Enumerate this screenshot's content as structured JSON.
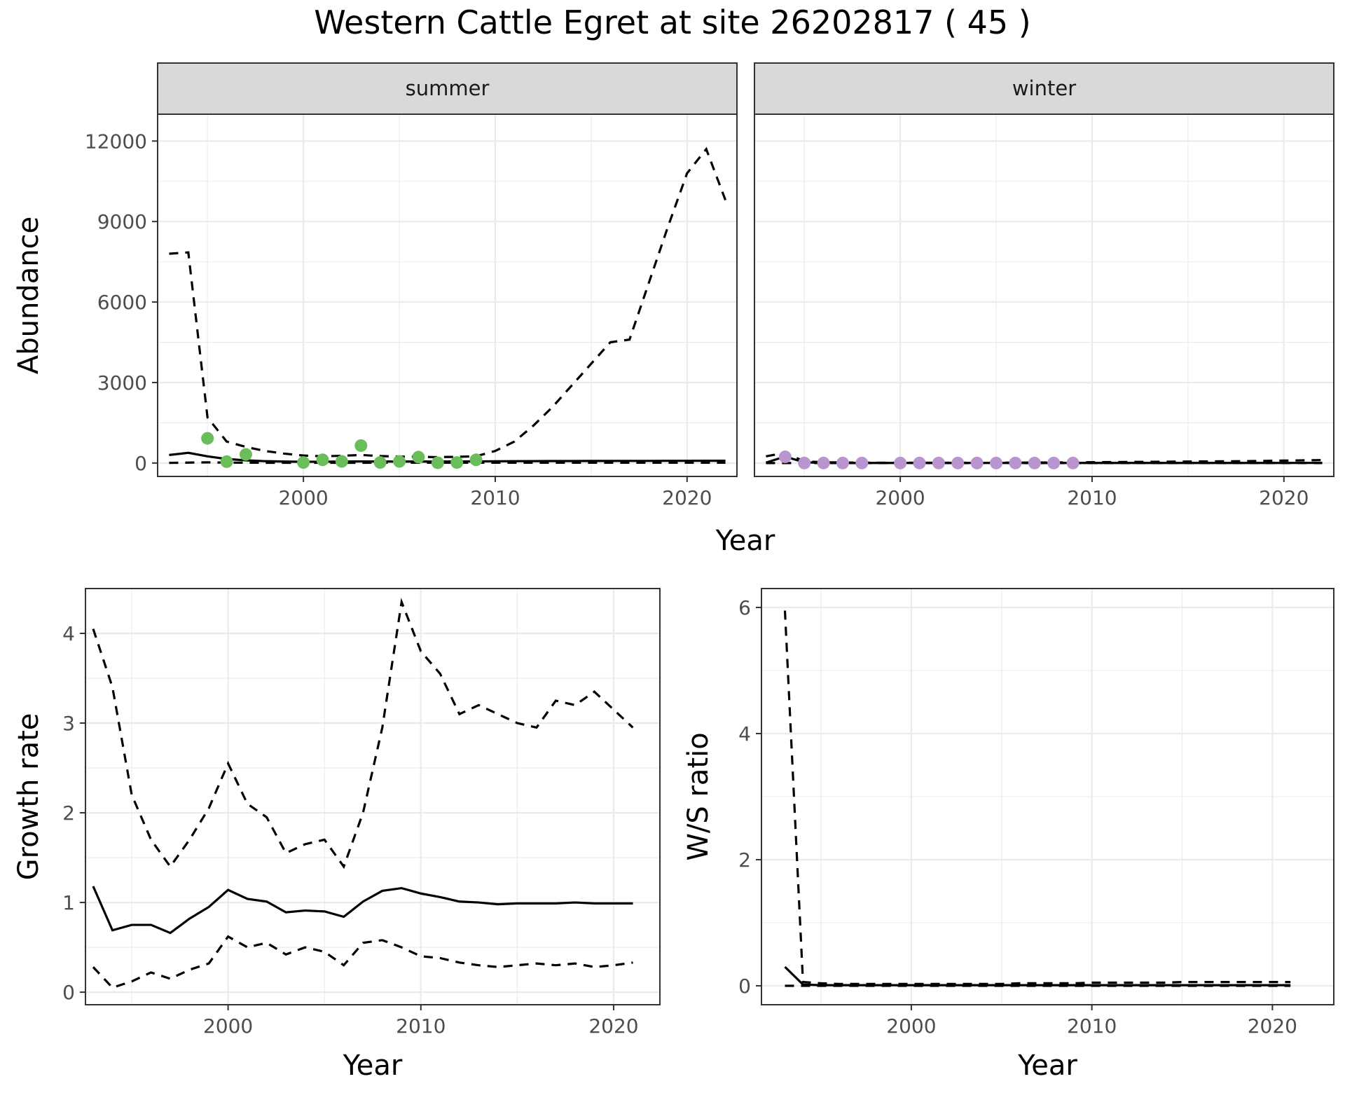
{
  "title": "Western Cattle Egret at site 26202817 ( 45 )",
  "colors": {
    "summer_points": "#6abd5a",
    "winter_points": "#b895cf",
    "line": "#000000"
  },
  "chart_data": [
    {
      "id": "abundance",
      "type": "line",
      "ylabel": "Abundance",
      "xlabel": "Year",
      "xlim": [
        1992.4,
        2022.6
      ],
      "ylim": [
        -500,
        13000
      ],
      "xticks": [
        2000,
        2010,
        2020
      ],
      "yticks": [
        0,
        3000,
        6000,
        9000,
        12000
      ],
      "grid": true,
      "facets": [
        {
          "strip": "summer",
          "point_color": "#6abd5a",
          "x": [
            1993,
            1994,
            1995,
            1996,
            1997,
            1998,
            1999,
            2000,
            2001,
            2002,
            2003,
            2004,
            2005,
            2006,
            2007,
            2008,
            2009,
            2010,
            2011,
            2012,
            2013,
            2014,
            2015,
            2016,
            2017,
            2018,
            2019,
            2020,
            2021,
            2022
          ],
          "series": [
            {
              "style": "dashed",
              "values": [
                7800,
                7850,
                1700,
                800,
                600,
                450,
                350,
                280,
                250,
                270,
                300,
                260,
                240,
                230,
                220,
                230,
                250,
                450,
                800,
                1400,
                2100,
                2900,
                3700,
                4500,
                4600,
                6700,
                8800,
                10800,
                11700,
                9800
              ]
            },
            {
              "style": "solid",
              "values": [
                300,
                380,
                250,
                150,
                100,
                70,
                55,
                45,
                50,
                55,
                60,
                55,
                55,
                55,
                55,
                58,
                60,
                65,
                70,
                72,
                75,
                75,
                78,
                78,
                80,
                80,
                82,
                82,
                85,
                85
              ]
            },
            {
              "style": "dashed",
              "values": [
                5,
                15,
                25,
                15,
                12,
                10,
                10,
                10,
                10,
                10,
                10,
                12,
                12,
                12,
                12,
                12,
                12,
                12,
                12,
                12,
                12,
                12,
                12,
                12,
                12,
                12,
                12,
                12,
                12,
                12
              ]
            }
          ],
          "points": {
            "x": [
              1995,
              1996,
              1997,
              2000,
              2001,
              2002,
              2003,
              2004,
              2005,
              2006,
              2007,
              2008,
              2009
            ],
            "y": [
              920,
              50,
              320,
              20,
              120,
              60,
              650,
              20,
              60,
              220,
              10,
              20,
              120
            ]
          }
        },
        {
          "strip": "winter",
          "point_color": "#b895cf",
          "x": [
            1993,
            1994,
            1995,
            1996,
            1997,
            1998,
            1999,
            2000,
            2001,
            2002,
            2003,
            2004,
            2005,
            2006,
            2007,
            2008,
            2009,
            2010,
            2011,
            2012,
            2013,
            2014,
            2015,
            2016,
            2017,
            2018,
            2019,
            2020,
            2021,
            2022
          ],
          "series": [
            {
              "style": "dashed",
              "values": [
                250,
                380,
                60,
                30,
                20,
                15,
                10,
                10,
                10,
                10,
                10,
                10,
                12,
                15,
                18,
                20,
                25,
                30,
                35,
                40,
                45,
                50,
                55,
                60,
                65,
                70,
                80,
                90,
                100,
                110
              ]
            },
            {
              "style": "solid",
              "values": [
                15,
                240,
                25,
                5,
                3,
                2,
                2,
                2,
                2,
                2,
                2,
                2,
                2,
                2,
                2,
                2,
                2,
                3,
                3,
                3,
                3,
                3,
                3,
                3,
                3,
                3,
                3,
                3,
                4,
                4
              ]
            },
            {
              "style": "dashed",
              "values": [
                0,
                0,
                0,
                0,
                0,
                0,
                0,
                0,
                0,
                0,
                0,
                0,
                0,
                0,
                0,
                0,
                0,
                0,
                0,
                0,
                0,
                0,
                0,
                0,
                0,
                0,
                0,
                0,
                0,
                0
              ]
            }
          ],
          "points": {
            "x": [
              1994,
              1995,
              1996,
              1997,
              1998,
              2000,
              2001,
              2002,
              2003,
              2004,
              2005,
              2006,
              2007,
              2008,
              2009
            ],
            "y": [
              230,
              0,
              0,
              0,
              0,
              0,
              0,
              0,
              0,
              0,
              0,
              0,
              0,
              0,
              0
            ]
          }
        }
      ]
    },
    {
      "id": "growth",
      "type": "line",
      "ylabel": "Growth rate",
      "xlabel": "Year",
      "xlim": [
        1992.6,
        2022.4
      ],
      "ylim": [
        -0.14,
        4.5
      ],
      "xticks": [
        2000,
        2010,
        2020
      ],
      "yticks": [
        0,
        1,
        2,
        3,
        4
      ],
      "grid": true,
      "x": [
        1993,
        1994,
        1995,
        1996,
        1997,
        1998,
        1999,
        2000,
        2001,
        2002,
        2003,
        2004,
        2005,
        2006,
        2007,
        2008,
        2009,
        2010,
        2011,
        2012,
        2013,
        2014,
        2015,
        2016,
        2017,
        2018,
        2019,
        2020,
        2021
      ],
      "series": [
        {
          "style": "dashed",
          "values": [
            4.05,
            3.4,
            2.2,
            1.7,
            1.4,
            1.7,
            2.05,
            2.55,
            2.1,
            1.95,
            1.55,
            1.65,
            1.7,
            1.4,
            2.0,
            2.95,
            4.35,
            3.8,
            3.55,
            3.1,
            3.2,
            3.1,
            3.0,
            2.95,
            3.25,
            3.2,
            3.35,
            3.15,
            2.95
          ]
        },
        {
          "style": "solid",
          "values": [
            1.18,
            0.69,
            0.75,
            0.75,
            0.66,
            0.82,
            0.95,
            1.14,
            1.04,
            1.01,
            0.89,
            0.91,
            0.9,
            0.84,
            1.01,
            1.13,
            1.16,
            1.1,
            1.06,
            1.01,
            1.0,
            0.98,
            0.99,
            0.99,
            0.99,
            1.0,
            0.99,
            0.99,
            0.99
          ]
        },
        {
          "style": "dashed",
          "values": [
            0.28,
            0.05,
            0.12,
            0.22,
            0.15,
            0.25,
            0.32,
            0.62,
            0.5,
            0.55,
            0.42,
            0.5,
            0.45,
            0.3,
            0.55,
            0.58,
            0.5,
            0.4,
            0.38,
            0.33,
            0.3,
            0.28,
            0.3,
            0.32,
            0.3,
            0.32,
            0.28,
            0.3,
            0.33
          ]
        }
      ]
    },
    {
      "id": "ratio",
      "type": "line",
      "ylabel": "W/S ratio",
      "xlabel": "Year",
      "xlim": [
        1991.7,
        2023.4
      ],
      "ylim": [
        -0.3,
        6.3
      ],
      "xticks": [
        2000,
        2010,
        2020
      ],
      "yticks": [
        0,
        2,
        4,
        6
      ],
      "grid": true,
      "x": [
        1993,
        1994,
        1995,
        1996,
        1997,
        1998,
        1999,
        2000,
        2001,
        2002,
        2003,
        2004,
        2005,
        2006,
        2007,
        2008,
        2009,
        2010,
        2011,
        2012,
        2013,
        2014,
        2015,
        2016,
        2017,
        2018,
        2019,
        2020,
        2021
      ],
      "series": [
        {
          "style": "dashed",
          "values": [
            5.95,
            0.06,
            0.04,
            0.03,
            0.03,
            0.03,
            0.03,
            0.03,
            0.03,
            0.03,
            0.03,
            0.03,
            0.03,
            0.04,
            0.04,
            0.04,
            0.04,
            0.05,
            0.05,
            0.05,
            0.05,
            0.05,
            0.06,
            0.06,
            0.06,
            0.06,
            0.06,
            0.06,
            0.06
          ]
        },
        {
          "style": "solid",
          "values": [
            0.3,
            0.02,
            0.01,
            0.01,
            0.01,
            0.01,
            0.01,
            0.01,
            0.01,
            0.01,
            0.01,
            0.01,
            0.01,
            0.01,
            0.01,
            0.01,
            0.01,
            0.01,
            0.01,
            0.01,
            0.01,
            0.01,
            0.01,
            0.01,
            0.01,
            0.01,
            0.01,
            0.01,
            0.01
          ]
        },
        {
          "style": "dashed",
          "values": [
            0,
            0,
            0,
            0,
            0,
            0,
            0,
            0,
            0,
            0,
            0,
            0,
            0,
            0,
            0,
            0,
            0,
            0,
            0,
            0,
            0,
            0,
            0,
            0,
            0,
            0,
            0,
            0,
            0
          ]
        }
      ]
    }
  ]
}
